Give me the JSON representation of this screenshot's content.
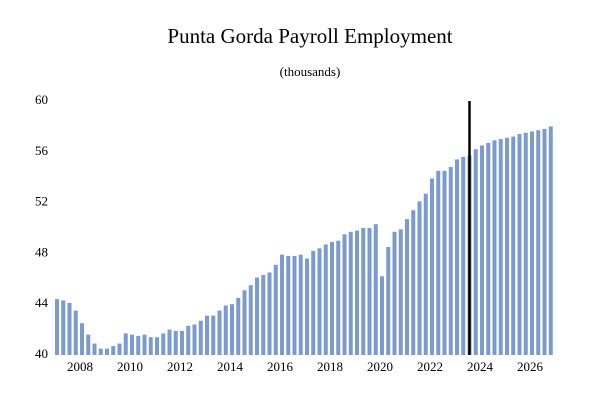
{
  "chart_data": {
    "type": "bar",
    "title": "Punta Gorda Payroll Employment",
    "subtitle": "(thousands)",
    "x": [
      2007,
      2007.25,
      2007.5,
      2007.75,
      2008,
      2008.25,
      2008.5,
      2008.75,
      2009,
      2009.25,
      2009.5,
      2009.75,
      2010,
      2010.25,
      2010.5,
      2010.75,
      2011,
      2011.25,
      2011.5,
      2011.75,
      2012,
      2012.25,
      2012.5,
      2012.75,
      2013,
      2013.25,
      2013.5,
      2013.75,
      2014,
      2014.25,
      2014.5,
      2014.75,
      2015,
      2015.25,
      2015.5,
      2015.75,
      2016,
      2016.25,
      2016.5,
      2016.75,
      2017,
      2017.25,
      2017.5,
      2017.75,
      2018,
      2018.25,
      2018.5,
      2018.75,
      2019,
      2019.25,
      2019.5,
      2019.75,
      2020,
      2020.25,
      2020.5,
      2020.75,
      2021,
      2021.25,
      2021.5,
      2021.75,
      2022,
      2022.25,
      2022.5,
      2022.75,
      2023,
      2023.25,
      2023.5,
      2023.75,
      2024,
      2024.25,
      2024.5,
      2024.75,
      2025,
      2025.25,
      2025.5,
      2025.75,
      2026,
      2026.25,
      2026.5,
      2026.75
    ],
    "values": [
      44.4,
      44.3,
      44.1,
      43.5,
      42.5,
      41.6,
      40.9,
      40.5,
      40.5,
      40.7,
      40.9,
      41.7,
      41.6,
      41.5,
      41.6,
      41.4,
      41.4,
      41.7,
      42.0,
      41.9,
      41.9,
      42.3,
      42.4,
      42.7,
      43.1,
      43.1,
      43.5,
      43.9,
      44.0,
      44.5,
      45.1,
      45.5,
      46.1,
      46.3,
      46.5,
      47.1,
      47.9,
      47.8,
      47.8,
      47.9,
      47.6,
      48.2,
      48.4,
      48.7,
      48.9,
      49.0,
      49.5,
      49.7,
      49.8,
      50.0,
      50.0,
      50.3,
      46.2,
      48.5,
      49.7,
      49.9,
      50.7,
      51.4,
      52.1,
      52.7,
      53.9,
      54.5,
      54.5,
      54.8,
      55.4,
      55.6,
      55.7,
      56.2,
      56.5,
      56.7,
      56.9,
      57.0,
      57.1,
      57.2,
      57.4,
      57.5,
      57.6,
      57.7,
      57.8,
      58.0
    ],
    "color": "#7b9bd0",
    "vline": 2023.5,
    "xlim": [
      2006.9,
      2027.1
    ],
    "xticks": [
      2008,
      2010,
      2012,
      2014,
      2016,
      2018,
      2020,
      2022,
      2024,
      2026
    ],
    "ylim": [
      40,
      60
    ],
    "yticks": [
      40,
      44,
      48,
      52,
      56,
      60
    ]
  }
}
